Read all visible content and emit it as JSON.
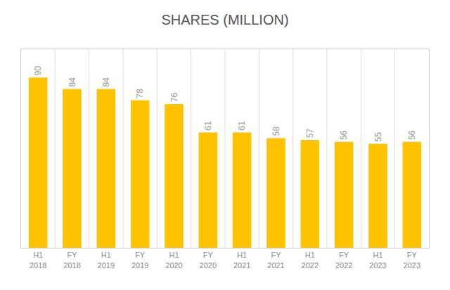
{
  "chart_data": {
    "type": "bar",
    "title": "SHARES (MILLION)",
    "categories": [
      "H1\n2018",
      "FY\n2018",
      "H1\n2019",
      "FY\n2019",
      "H1\n2020",
      "FY\n2020",
      "H1\n2021",
      "FY\n2021",
      "H1\n2022",
      "FY\n2022",
      "H1\n2023",
      "FY\n2023"
    ],
    "values": [
      90,
      84,
      84,
      78,
      76,
      61,
      61,
      58,
      57,
      56,
      55,
      56
    ],
    "color": "#FFC200",
    "ylim": [
      0,
      105
    ],
    "data_labels": true,
    "tick_labels": "x"
  }
}
